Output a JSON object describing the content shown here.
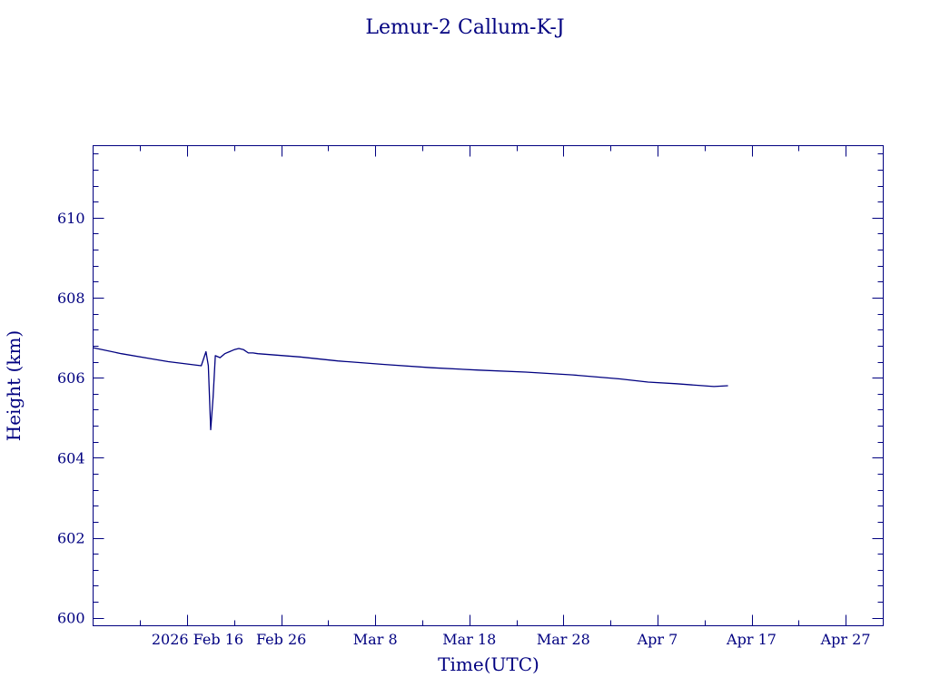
{
  "chart_data": {
    "type": "line",
    "title": "Lemur-2 Callum-K-J",
    "xlabel": "Time(UTC)",
    "ylabel": "Height (km)",
    "xlim": [
      "2026-02-06",
      "2026-05-01"
    ],
    "ylim": [
      599.8,
      611.8
    ],
    "y_ticks": [
      600,
      602,
      604,
      606,
      608,
      610
    ],
    "y_tick_labels": [
      "600",
      "602",
      "604",
      "606",
      "608",
      "610"
    ],
    "x_ticks": [
      "2026-02-16",
      "2026-02-26",
      "2026-03-08",
      "2026-03-18",
      "2026-03-28",
      "2026-04-07",
      "2026-04-17",
      "2026-04-27"
    ],
    "x_tick_labels": [
      "2026 Feb 16",
      "Feb 26",
      "Mar  8",
      "Mar 18",
      "Mar 28",
      "Apr  7",
      "Apr 17",
      "Apr 27"
    ],
    "grid": false,
    "series": [
      {
        "color": "#000080",
        "x": [
          "2026-02-06T00:00",
          "2026-02-09T00:00",
          "2026-02-12T00:00",
          "2026-02-14T00:00",
          "2026-02-17T12:00",
          "2026-02-18T00:00",
          "2026-02-18T06:00",
          "2026-02-18T12:00",
          "2026-02-18T18:00",
          "2026-02-19T00:00",
          "2026-02-19T12:00",
          "2026-02-20T00:00",
          "2026-02-20T12:00",
          "2026-02-21T00:00",
          "2026-02-21T12:00",
          "2026-02-22T00:00",
          "2026-02-22T12:00",
          "2026-02-23T00:00",
          "2026-02-23T12:00",
          "2026-02-28T00:00",
          "2026-03-04T00:00",
          "2026-03-09T00:00",
          "2026-03-14T00:00",
          "2026-03-19T00:00",
          "2026-03-24T00:00",
          "2026-03-29T00:00",
          "2026-04-03T00:00",
          "2026-04-06T00:00",
          "2026-04-09T00:00",
          "2026-04-13T00:00",
          "2026-04-14T12:00"
        ],
        "y": [
          606.75,
          606.6,
          606.48,
          606.4,
          606.3,
          606.65,
          606.3,
          604.7,
          605.5,
          606.55,
          606.5,
          606.6,
          606.65,
          606.7,
          606.73,
          606.7,
          606.62,
          606.62,
          606.6,
          606.52,
          606.42,
          606.33,
          606.25,
          606.19,
          606.14,
          606.07,
          605.97,
          605.89,
          605.85,
          605.78,
          605.8
        ]
      }
    ]
  }
}
